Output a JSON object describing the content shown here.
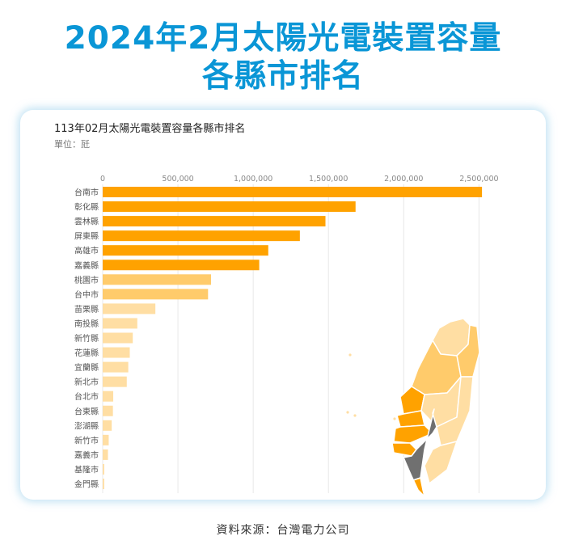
{
  "headline": {
    "line1": "2024年2月太陽光電裝置容量",
    "line2": "各縣市排名"
  },
  "chart_data": {
    "type": "bar",
    "orientation": "horizontal",
    "title": "113年02月太陽光電裝置容量各縣市排名",
    "unit_label": "單位：瓩",
    "xlim": [
      0,
      2600000
    ],
    "xticks": [
      0,
      500000,
      1000000,
      1500000,
      2000000,
      2500000
    ],
    "xtick_labels": [
      "0",
      "500,000",
      "1,000,000",
      "1,500,000",
      "2,000,000",
      "2,500,000"
    ],
    "grid": true,
    "categories": [
      "台南市",
      "彰化縣",
      "雲林縣",
      "屏東縣",
      "高雄市",
      "嘉義縣",
      "桃園市",
      "台中市",
      "苗栗縣",
      "南投縣",
      "新竹縣",
      "花蓮縣",
      "宜蘭縣",
      "新北市",
      "台北市",
      "台東縣",
      "澎湖縣",
      "新竹市",
      "嘉義市",
      "基隆市",
      "金門縣"
    ],
    "values": [
      2520000,
      1680000,
      1480000,
      1310000,
      1100000,
      1040000,
      720000,
      700000,
      350000,
      230000,
      200000,
      180000,
      170000,
      160000,
      70000,
      68000,
      60000,
      40000,
      35000,
      10000,
      10000
    ],
    "colors": {
      "top_tier": "#ffa200",
      "mid_tier": "#ffcb6b",
      "low_tier": "#ffdea3",
      "grid": "#e8e8e8",
      "axis_text": "#888888",
      "label_text": "#555555"
    }
  },
  "map": {
    "colors": {
      "orange": "#ffa200",
      "gray": "#707070",
      "light": "#ffdea3",
      "mid": "#ffcb6b"
    }
  },
  "source_text": "資料來源：台灣電力公司"
}
